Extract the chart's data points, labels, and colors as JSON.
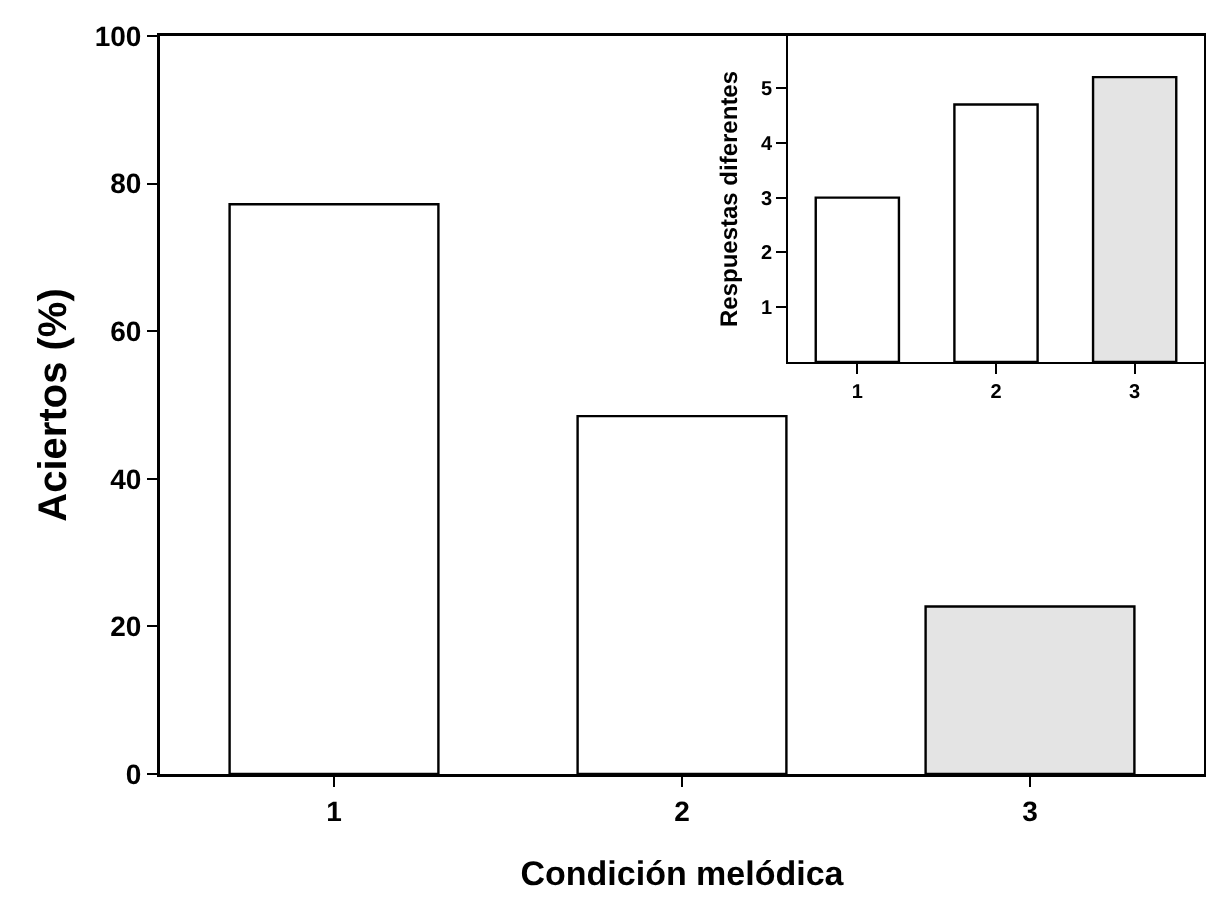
{
  "chart_data": [
    {
      "type": "bar",
      "xlabel": "Condición melódica",
      "ylabel": "Aciertos (%)",
      "categories": [
        "1",
        "2",
        "3"
      ],
      "values": [
        77.2,
        48.5,
        22.7
      ],
      "colors": [
        "#ffffff",
        "#ffffff",
        "#e4e4e4"
      ],
      "ylim": [
        0,
        100
      ],
      "yticks": [
        0,
        20,
        40,
        60,
        80,
        100
      ]
    },
    {
      "type": "bar",
      "ylabel": "Respuestas diferentes",
      "categories": [
        "1",
        "2",
        "3"
      ],
      "values": [
        3.0,
        4.7,
        5.2
      ],
      "colors": [
        "#ffffff",
        "#ffffff",
        "#e4e4e4"
      ],
      "ylim": [
        0,
        5.95
      ],
      "yticks": [
        1,
        2,
        3,
        4,
        5
      ]
    }
  ]
}
